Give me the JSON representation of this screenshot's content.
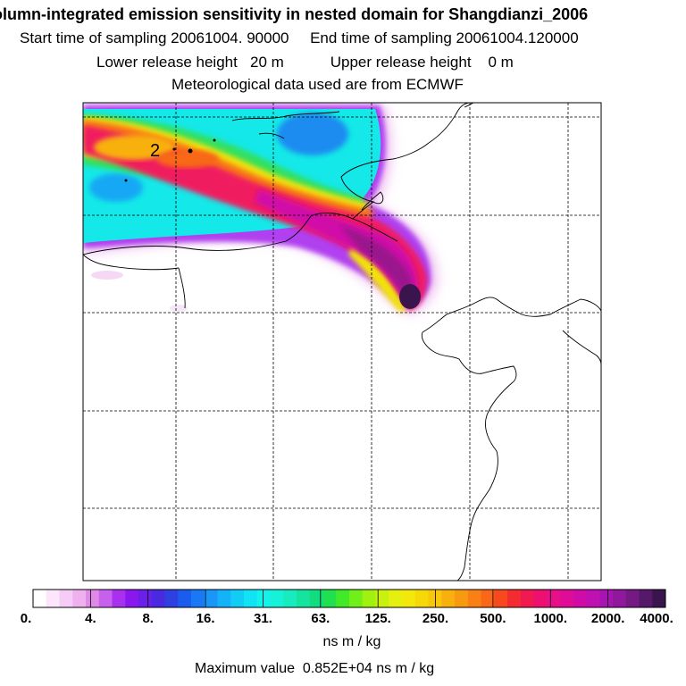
{
  "header": {
    "title": "olumn-integrated emission sensitivity in nested domain for Shangdianzi_2006",
    "line2": "Start time of sampling 20061004. 90000     End time of sampling 20061004.120000",
    "line3": "Lower release height   20 m           Upper release height    0 m",
    "line4": "Meteorological data used are from ECMWF"
  },
  "map": {
    "point_label": "2"
  },
  "colorbar": {
    "tick_labels": [
      "0.",
      "4.",
      "8.",
      "16.",
      "31.",
      "63.",
      "125.",
      "250.",
      "500.",
      "1000.",
      "2000.",
      "4000."
    ],
    "units": "ns m / kg",
    "colors": [
      "#ffffff",
      "#fbe6fb",
      "#f5ccf5",
      "#eeb0ee",
      "#e08ae8",
      "#c860ee",
      "#aa30f0",
      "#8a18ee",
      "#6a20e8",
      "#4a2ae0",
      "#2e40e0",
      "#1a5cee",
      "#1a78f4",
      "#1a96f8",
      "#14b2f8",
      "#12ccf6",
      "#10e4f4",
      "#14f2ec",
      "#16f2d8",
      "#18ecbe",
      "#14e49e",
      "#12dc80",
      "#20e050",
      "#40ea28",
      "#70f018",
      "#a0f010",
      "#c8f010",
      "#e6f010",
      "#f2e80a",
      "#f6d808",
      "#f8c60a",
      "#f8b00c",
      "#f89a10",
      "#f88014",
      "#f86818",
      "#f8481e",
      "#f42c30",
      "#f01a50",
      "#ee1070",
      "#e81088",
      "#e00c98",
      "#d00ca8",
      "#c010b2",
      "#a814b2",
      "#90189c",
      "#741a82",
      "#561868",
      "#3a144c"
    ],
    "maximum_text": "Maximum value  0.852E+04 ns m / kg"
  }
}
